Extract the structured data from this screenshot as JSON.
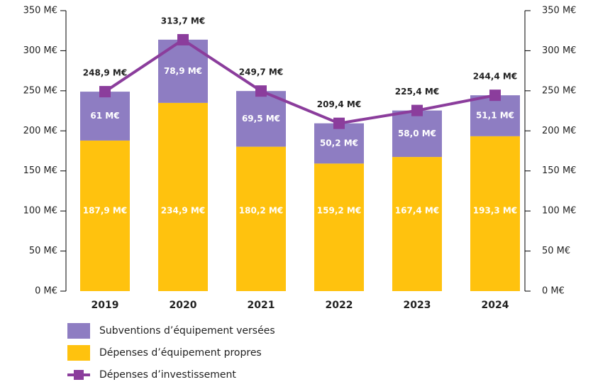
{
  "chart_data": {
    "type": "bar",
    "stacked": true,
    "categories": [
      "2019",
      "2020",
      "2021",
      "2022",
      "2023",
      "2024"
    ],
    "series": [
      {
        "name": "Dépenses d’équipement propres",
        "color": "#ffc20e",
        "values": [
          187.9,
          234.9,
          180.2,
          159.2,
          167.4,
          193.3
        ],
        "value_labels": [
          "187,9 M€",
          "234,9 M€",
          "180,2 M€",
          "159,2 M€",
          "167,4 M€",
          "193,3 M€"
        ]
      },
      {
        "name": "Subventions d’équipement versées",
        "color": "#8e7dc2",
        "values": [
          61,
          78.9,
          69.5,
          50.2,
          58.0,
          51.1
        ],
        "value_labels": [
          "61 M€",
          "78,9 M€",
          "69,5 M€",
          "50,2 M€",
          "58,0 M€",
          "51,1 M€"
        ]
      },
      {
        "name": "Dépenses d’investissement",
        "type": "line",
        "axis": "y2",
        "color": "#8b3d9c",
        "values": [
          248.9,
          313.7,
          249.7,
          209.4,
          225.4,
          244.4
        ],
        "value_labels": [
          "248,9 M€",
          "313,7 M€",
          "249,7 M€",
          "209,4 M€",
          "225,4 M€",
          "244,4 M€"
        ]
      }
    ],
    "ylim": [
      0,
      350
    ],
    "yticks": [
      {
        "value": 0,
        "label": "0 M€"
      },
      {
        "value": 50,
        "label": "50 M€"
      },
      {
        "value": 100,
        "label": "100 M€"
      },
      {
        "value": 150,
        "label": "150 M€"
      },
      {
        "value": 200,
        "label": "200 M€"
      },
      {
        "value": 250,
        "label": "250 M€"
      },
      {
        "value": 300,
        "label": "300 M€"
      },
      {
        "value": 350,
        "label": "350 M€"
      }
    ],
    "y2lim": [
      0,
      350
    ],
    "y2ticks": [
      {
        "value": 0,
        "label": "0 M€"
      },
      {
        "value": 50,
        "label": "50 M€"
      },
      {
        "value": 100,
        "label": "100 M€"
      },
      {
        "value": 150,
        "label": "150 M€"
      },
      {
        "value": 200,
        "label": "200 M€"
      },
      {
        "value": 250,
        "label": "250 M€"
      },
      {
        "value": 300,
        "label": "300 M€"
      },
      {
        "value": 350,
        "label": "350 M€"
      }
    ]
  }
}
